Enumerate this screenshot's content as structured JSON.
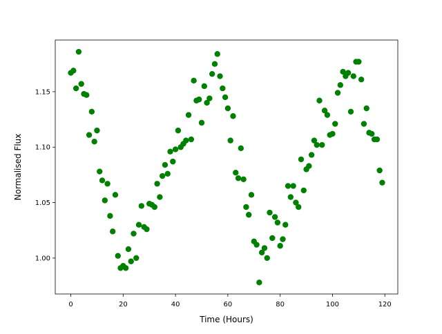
{
  "chart_data": {
    "type": "scatter",
    "xlabel": "Time (Hours)",
    "ylabel": "Normalised Flux",
    "color": "#008000",
    "x": [
      0,
      1,
      2,
      3,
      4,
      5,
      6,
      7,
      8,
      9,
      10,
      11,
      12,
      13,
      14,
      15,
      16,
      17,
      18,
      19,
      20,
      21,
      22,
      23,
      24,
      25,
      26,
      27,
      28,
      29,
      30,
      31,
      32,
      33,
      34,
      35,
      36,
      37,
      38,
      39,
      40,
      41,
      42,
      43,
      44,
      45,
      46,
      47,
      48,
      49,
      50,
      51,
      52,
      53,
      54,
      55,
      56,
      57,
      58,
      59,
      60,
      61,
      62,
      63,
      64,
      65,
      66,
      67,
      68,
      69,
      70,
      71,
      72,
      73,
      74,
      75,
      76,
      77,
      78,
      79,
      80,
      81,
      82,
      83,
      84,
      85,
      86,
      87,
      88,
      89,
      90,
      91,
      92,
      93,
      94,
      95,
      96,
      97,
      98,
      99,
      100,
      101,
      102,
      103,
      104,
      105,
      106,
      107,
      108,
      109,
      110,
      111,
      112,
      113,
      114,
      115,
      116,
      117,
      118,
      119
    ],
    "values": [
      1.167,
      1.169,
      1.153,
      1.186,
      1.157,
      1.148,
      1.147,
      1.111,
      1.132,
      1.105,
      1.115,
      1.078,
      1.07,
      1.052,
      1.067,
      1.038,
      1.024,
      1.057,
      1.002,
      0.991,
      0.993,
      0.991,
      1.008,
      0.997,
      1.022,
      1.0,
      1.03,
      1.047,
      1.028,
      1.026,
      1.049,
      1.048,
      1.046,
      1.067,
      1.055,
      1.074,
      1.084,
      1.076,
      1.096,
      1.087,
      1.098,
      1.115,
      1.1,
      1.103,
      1.106,
      1.129,
      1.107,
      1.16,
      1.142,
      1.143,
      1.122,
      1.155,
      1.14,
      1.144,
      1.166,
      1.175,
      1.184,
      1.164,
      1.153,
      1.145,
      1.135,
      1.106,
      1.128,
      1.077,
      1.072,
      1.099,
      1.071,
      1.046,
      1.039,
      1.057,
      1.015,
      1.012,
      0.978,
      1.005,
      1.009,
      1.0,
      1.041,
      1.018,
      1.037,
      1.032,
      1.011,
      1.017,
      1.03,
      1.065,
      1.055,
      1.065,
      1.05,
      1.046,
      1.089,
      1.061,
      1.08,
      1.083,
      1.093,
      1.106,
      1.102,
      1.142,
      1.102,
      1.133,
      1.129,
      1.111,
      1.112,
      1.121,
      1.149,
      1.156,
      1.168,
      1.164,
      1.167,
      1.132,
      1.164,
      1.177,
      1.177,
      1.161,
      1.121,
      1.135,
      1.113,
      1.112,
      1.107,
      1.107,
      1.079,
      1.068
    ],
    "xlim": [
      -5.95,
      124.95
    ],
    "xticks": [
      0,
      20,
      40,
      60,
      80,
      100,
      120
    ],
    "ylim": [
      0.9676,
      1.1966
    ],
    "yticks": [
      {
        "value": 1,
        "label": "1.00"
      },
      {
        "value": 1.05,
        "label": "1.05"
      },
      {
        "value": 1.1,
        "label": "1.10"
      },
      {
        "value": 1.15,
        "label": "1.15"
      }
    ]
  }
}
